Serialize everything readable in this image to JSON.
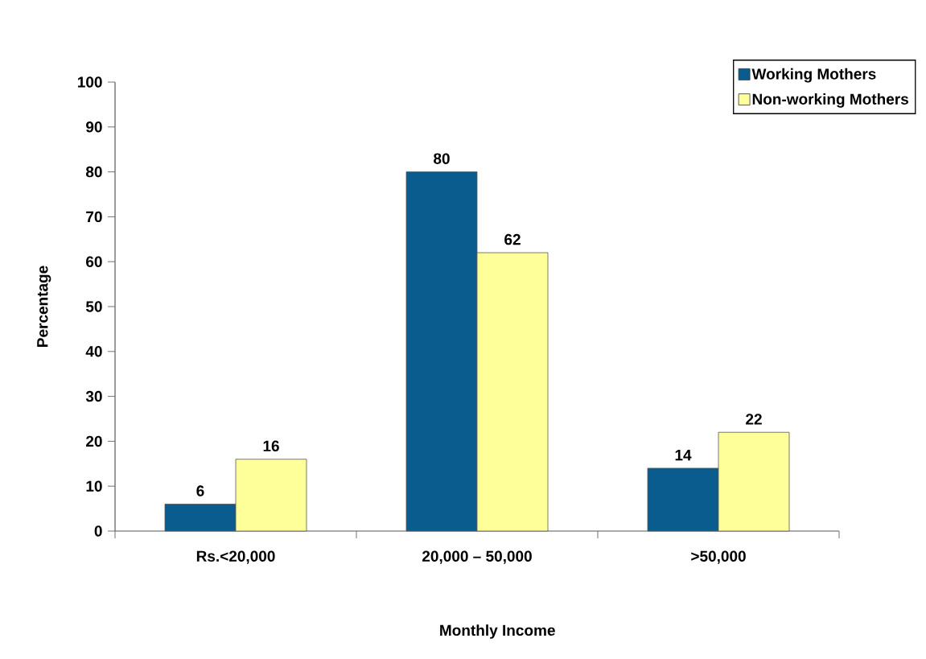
{
  "chart_data": {
    "type": "bar",
    "xlabel": "Monthly Income",
    "ylabel": "Percentage",
    "categories": [
      "Rs.<20,000",
      "20,000 – 50,000",
      ">50,000"
    ],
    "series": [
      {
        "name": "Working Mothers",
        "color": "#0b5c8e",
        "values": [
          6,
          80,
          14
        ]
      },
      {
        "name": "Non-working Mothers",
        "color": "#ffff99",
        "values": [
          16,
          62,
          22
        ]
      }
    ],
    "ylim": [
      0,
      100
    ],
    "yticks": [
      0,
      10,
      20,
      30,
      40,
      50,
      60,
      70,
      80,
      90,
      100
    ],
    "data_labels": true,
    "legend": "top right"
  }
}
